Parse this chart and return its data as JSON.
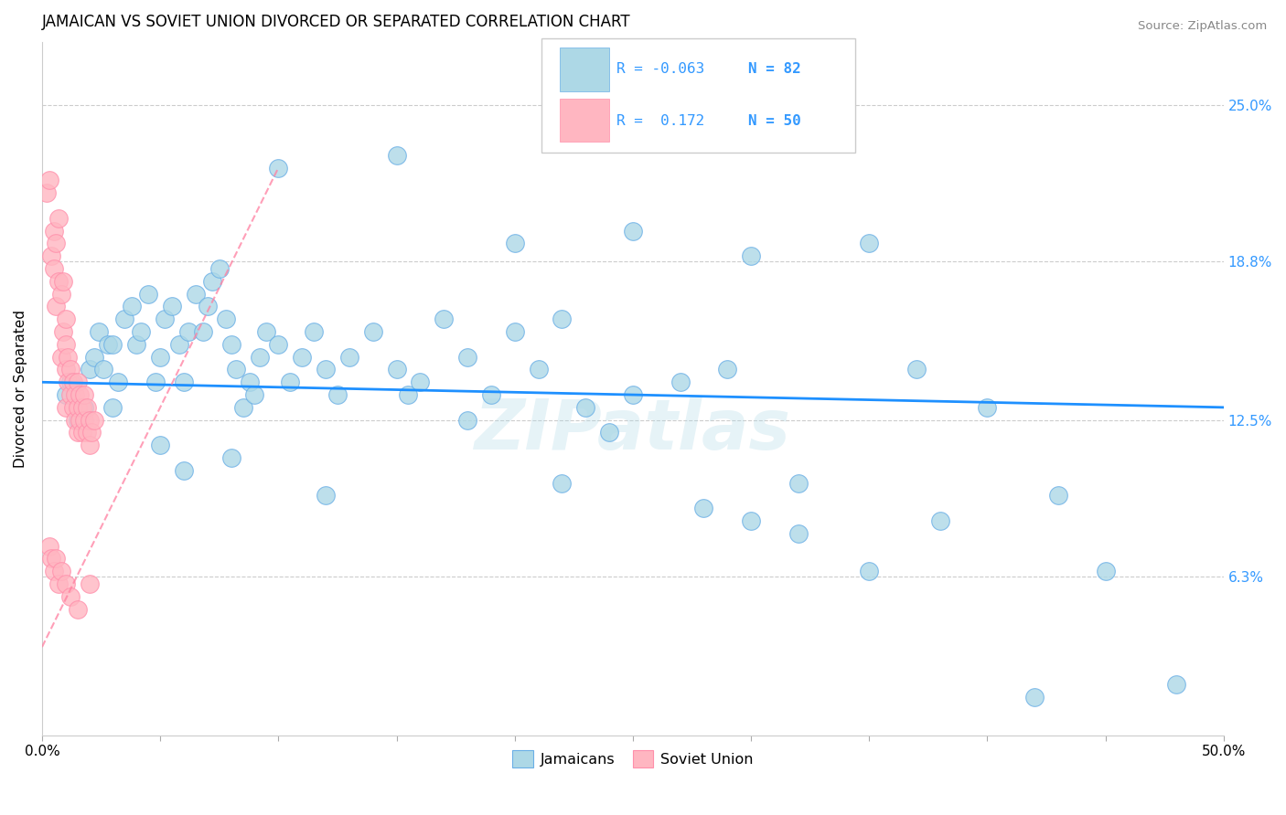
{
  "title": "JAMAICAN VS SOVIET UNION DIVORCED OR SEPARATED CORRELATION CHART",
  "source": "Source: ZipAtlas.com",
  "ylabel": "Divorced or Separated",
  "ytick_labels": [
    "6.3%",
    "12.5%",
    "18.8%",
    "25.0%"
  ],
  "ytick_values": [
    6.3,
    12.5,
    18.8,
    25.0
  ],
  "xlim": [
    0.0,
    50.0
  ],
  "ylim": [
    0.0,
    27.5
  ],
  "legend_label1": "Jamaicans",
  "legend_label2": "Soviet Union",
  "color_blue": "#ADD8E6",
  "color_pink": "#FFB6C1",
  "color_blue_edge": "#6AAFE6",
  "color_pink_edge": "#FF8FAB",
  "color_trend_blue": "#1E90FF",
  "color_trend_pink": "#FF7FA0",
  "color_right_labels": "#3399FF",
  "watermark": "ZIPatlas",
  "blue_trend_y0": 14.0,
  "blue_trend_y1": 13.0,
  "pink_trend_x0": 0.0,
  "pink_trend_y0": 3.5,
  "pink_trend_x1": 10.0,
  "pink_trend_y1": 22.5,
  "blue_dots_x": [
    1.0,
    1.2,
    1.5,
    1.8,
    2.0,
    2.2,
    2.4,
    2.6,
    2.8,
    3.0,
    3.2,
    3.5,
    3.8,
    4.0,
    4.2,
    4.5,
    4.8,
    5.0,
    5.2,
    5.5,
    5.8,
    6.0,
    6.2,
    6.5,
    6.8,
    7.0,
    7.2,
    7.5,
    7.8,
    8.0,
    8.2,
    8.5,
    8.8,
    9.0,
    9.2,
    9.5,
    10.0,
    10.5,
    11.0,
    11.5,
    12.0,
    12.5,
    13.0,
    14.0,
    15.0,
    15.5,
    16.0,
    17.0,
    18.0,
    19.0,
    20.0,
    21.0,
    22.0,
    23.0,
    24.0,
    25.0,
    27.0,
    29.0,
    30.0,
    32.0,
    35.0,
    37.0,
    40.0,
    43.0,
    45.0,
    10.0,
    15.0,
    20.0,
    25.0,
    30.0,
    35.0,
    5.0,
    8.0,
    12.0,
    18.0,
    22.0,
    28.0,
    32.0,
    38.0,
    42.0,
    48.0,
    3.0,
    6.0
  ],
  "blue_dots_y": [
    13.5,
    14.0,
    12.5,
    13.0,
    14.5,
    15.0,
    16.0,
    14.5,
    15.5,
    13.0,
    14.0,
    16.5,
    17.0,
    15.5,
    16.0,
    17.5,
    14.0,
    15.0,
    16.5,
    17.0,
    15.5,
    14.0,
    16.0,
    17.5,
    16.0,
    17.0,
    18.0,
    18.5,
    16.5,
    15.5,
    14.5,
    13.0,
    14.0,
    13.5,
    15.0,
    16.0,
    15.5,
    14.0,
    15.0,
    16.0,
    14.5,
    13.5,
    15.0,
    16.0,
    14.5,
    13.5,
    14.0,
    16.5,
    15.0,
    13.5,
    16.0,
    14.5,
    16.5,
    13.0,
    12.0,
    13.5,
    14.0,
    14.5,
    8.5,
    10.0,
    6.5,
    14.5,
    13.0,
    9.5,
    6.5,
    22.5,
    23.0,
    19.5,
    20.0,
    19.0,
    19.5,
    11.5,
    11.0,
    9.5,
    12.5,
    10.0,
    9.0,
    8.0,
    8.5,
    1.5,
    2.0,
    15.5,
    10.5
  ],
  "pink_dots_x": [
    0.2,
    0.3,
    0.4,
    0.5,
    0.5,
    0.6,
    0.6,
    0.7,
    0.7,
    0.8,
    0.8,
    0.9,
    0.9,
    1.0,
    1.0,
    1.0,
    1.0,
    1.1,
    1.1,
    1.2,
    1.2,
    1.3,
    1.3,
    1.4,
    1.4,
    1.5,
    1.5,
    1.5,
    1.6,
    1.6,
    1.7,
    1.7,
    1.8,
    1.8,
    1.9,
    1.9,
    2.0,
    2.0,
    2.1,
    2.2,
    0.3,
    0.4,
    0.5,
    0.6,
    0.7,
    0.8,
    1.0,
    1.2,
    1.5,
    2.0
  ],
  "pink_dots_y": [
    21.5,
    22.0,
    19.0,
    18.5,
    20.0,
    17.0,
    19.5,
    18.0,
    20.5,
    15.0,
    17.5,
    16.0,
    18.0,
    14.5,
    13.0,
    15.5,
    16.5,
    14.0,
    15.0,
    13.5,
    14.5,
    13.0,
    14.0,
    12.5,
    13.5,
    13.0,
    14.0,
    12.0,
    13.5,
    12.5,
    12.0,
    13.0,
    12.5,
    13.5,
    12.0,
    13.0,
    12.5,
    11.5,
    12.0,
    12.5,
    7.5,
    7.0,
    6.5,
    7.0,
    6.0,
    6.5,
    6.0,
    5.5,
    5.0,
    6.0
  ]
}
